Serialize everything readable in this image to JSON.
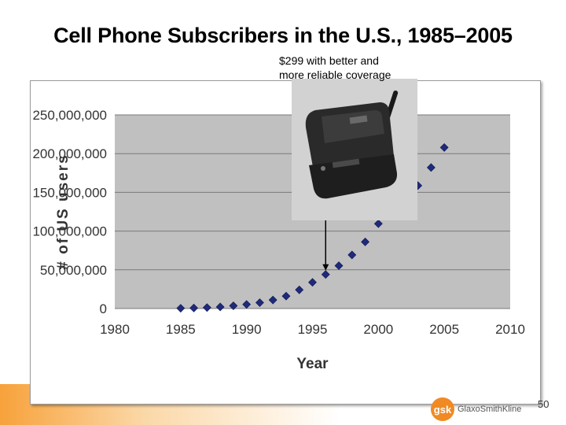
{
  "slide": {
    "title": "Cell Phone Subscribers in the U.S., 1985–2005",
    "page_number": "50",
    "logo_text": "GlaxoSmithKline",
    "logo_mark": "gsk"
  },
  "annotation": {
    "line1": "$299 with better and",
    "line2": "more reliable coverage"
  },
  "phone_image": {
    "icon": "flip-phone-icon"
  },
  "chart_data": {
    "type": "scatter",
    "xlabel": "Year",
    "ylabel": "# of US users",
    "xlim": [
      1980,
      2010
    ],
    "ylim": [
      0,
      250000000
    ],
    "x_ticks": [
      1980,
      1985,
      1990,
      1995,
      2000,
      2005,
      2010
    ],
    "x_tick_labels": [
      "1980",
      "1985",
      "1990",
      "1995",
      "2000",
      "2005",
      "2010"
    ],
    "y_ticks": [
      0,
      50000000,
      100000000,
      150000000,
      200000000,
      250000000
    ],
    "y_tick_labels": [
      "0",
      "50,000,000",
      "100,000,000",
      "150,000,000",
      "200,000,000",
      "250,000,000"
    ],
    "grid": true,
    "plot_background": "#c0c0c0",
    "marker_color": "#1f2a7a",
    "series": [
      {
        "x": [
          1985,
          1986,
          1987,
          1988,
          1989,
          1990,
          1991,
          1992,
          1993,
          1994,
          1995,
          1996,
          1997,
          1998,
          1999,
          2000,
          2001,
          2002,
          2003,
          2004,
          2005
        ],
        "y": [
          340000,
          680000,
          1230000,
          2070000,
          3510000,
          5280000,
          7560000,
          11000000,
          16000000,
          24100000,
          33800000,
          44000000,
          55300000,
          69200000,
          86000000,
          109500000,
          128400000,
          141000000,
          158700000,
          182100000,
          207900000
        ]
      }
    ],
    "annotation_arrow": {
      "x": 1996,
      "y_from": 133000000,
      "y_to": 49000000
    }
  }
}
